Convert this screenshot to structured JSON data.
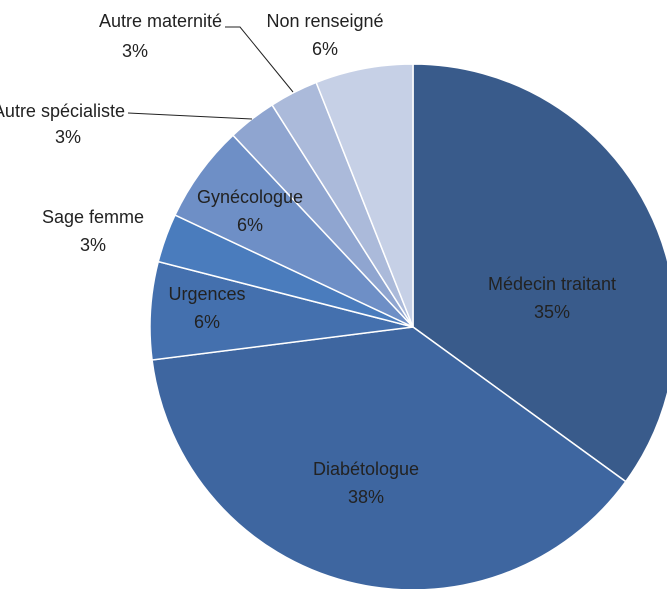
{
  "chart_data": {
    "type": "pie",
    "categories": [
      "Médecin traitant",
      "Diabétologue",
      "Urgences",
      "Sage femme",
      "Gynécologue",
      "Autre spécialiste",
      "Autre maternité",
      "Non renseigné"
    ],
    "values": [
      35,
      38,
      6,
      3,
      6,
      3,
      3,
      6
    ],
    "value_labels": [
      "35%",
      "38%",
      "6%",
      "3%",
      "6%",
      "3%",
      "3%",
      "6%"
    ],
    "colors": [
      "#395b8b",
      "#3e66a0",
      "#4470ae",
      "#4a7cbd",
      "#6e8fc6",
      "#8fa5d0",
      "#abbada",
      "#c6d0e6"
    ]
  }
}
